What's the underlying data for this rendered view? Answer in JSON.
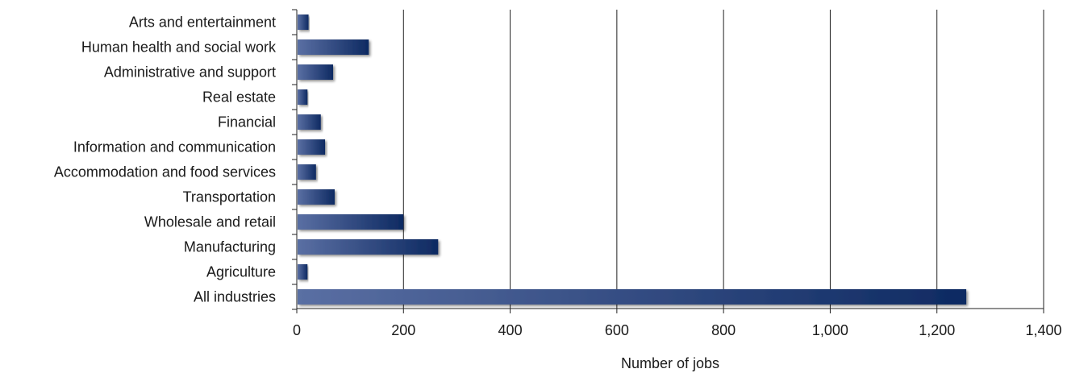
{
  "chart_data": {
    "type": "bar",
    "orientation": "horizontal",
    "title": "",
    "xlabel": "Number of jobs",
    "ylabel": "",
    "xlim": [
      0,
      1400
    ],
    "xticks": [
      0,
      200,
      400,
      600,
      800,
      1000,
      1200,
      1400
    ],
    "xtick_labels": [
      "0",
      "200",
      "400",
      "600",
      "800",
      "1,000",
      "1,200",
      "1,400"
    ],
    "grid": "vertical",
    "legend": "none",
    "bar_color_light": "#5a6fa3",
    "bar_color_dark": "#0e2a62",
    "categories": [
      "Arts and entertainment",
      "Human health and social work",
      "Administrative and support",
      "Real estate",
      "Financial",
      "Information and communication",
      "Accommodation and food services",
      "Transportation",
      "Wholesale and retail",
      "Manufacturing",
      "Agriculture",
      "All industries"
    ],
    "values": [
      22,
      135,
      68,
      20,
      45,
      53,
      36,
      71,
      200,
      265,
      20,
      1255
    ]
  }
}
